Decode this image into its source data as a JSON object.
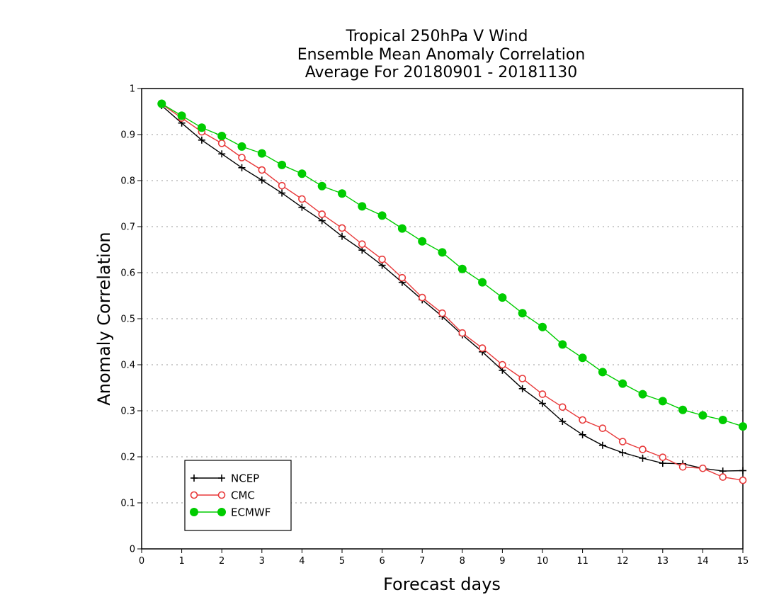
{
  "chart_data": {
    "type": "line",
    "title": [
      "Tropical 250hPa V Wind",
      "Ensemble Mean Anomaly Correlation",
      "Average For 20180901 - 20181130"
    ],
    "xlabel": "Forecast days",
    "ylabel": "Anomaly Correlation",
    "xlim": [
      0,
      15
    ],
    "ylim": [
      0,
      1
    ],
    "xticks": [
      0,
      1,
      2,
      3,
      4,
      5,
      6,
      7,
      8,
      9,
      10,
      11,
      12,
      13,
      14,
      15
    ],
    "yticks": [
      0,
      0.1,
      0.2,
      0.3,
      0.4,
      0.5,
      0.6,
      0.7,
      0.8,
      0.9,
      1
    ],
    "ytick_labels": [
      "0",
      "0.1",
      "0.2",
      "0.3",
      "0.4",
      "0.5",
      "0.6",
      "0.7",
      "0.8",
      "0.9",
      "1"
    ],
    "grid": true,
    "legend_position": "bottom-left",
    "x": [
      0.5,
      1,
      1.5,
      2,
      2.5,
      3,
      3.5,
      4,
      4.5,
      5,
      5.5,
      6,
      6.5,
      7,
      7.5,
      8,
      8.5,
      9,
      9.5,
      10,
      10.5,
      11,
      11.5,
      12,
      12.5,
      13,
      13.5,
      14,
      14.5,
      15
    ],
    "series": [
      {
        "name": "NCEP",
        "color": "#000000",
        "marker": "plus",
        "values": [
          0.963,
          0.925,
          0.888,
          0.858,
          0.828,
          0.801,
          0.773,
          0.742,
          0.713,
          0.679,
          0.649,
          0.616,
          0.579,
          0.541,
          0.505,
          0.465,
          0.428,
          0.388,
          0.348,
          0.316,
          0.277,
          0.248,
          0.225,
          0.209,
          0.197,
          0.186,
          0.185,
          0.175,
          0.169,
          0.17
        ]
      },
      {
        "name": "CMC",
        "color": "#e8393a",
        "marker": "open-circle",
        "values": [
          0.966,
          0.936,
          0.906,
          0.881,
          0.85,
          0.823,
          0.789,
          0.76,
          0.727,
          0.697,
          0.662,
          0.629,
          0.589,
          0.546,
          0.512,
          0.469,
          0.436,
          0.4,
          0.37,
          0.336,
          0.308,
          0.28,
          0.262,
          0.233,
          0.216,
          0.199,
          0.178,
          0.175,
          0.156,
          0.149
        ]
      },
      {
        "name": "ECMWF",
        "color": "#00cc00",
        "marker": "filled-circle",
        "values": [
          0.967,
          0.941,
          0.915,
          0.897,
          0.874,
          0.859,
          0.834,
          0.815,
          0.788,
          0.772,
          0.744,
          0.724,
          0.696,
          0.668,
          0.644,
          0.608,
          0.579,
          0.546,
          0.512,
          0.482,
          0.444,
          0.415,
          0.384,
          0.359,
          0.336,
          0.321,
          0.302,
          0.29,
          0.28,
          0.266
        ]
      }
    ]
  }
}
